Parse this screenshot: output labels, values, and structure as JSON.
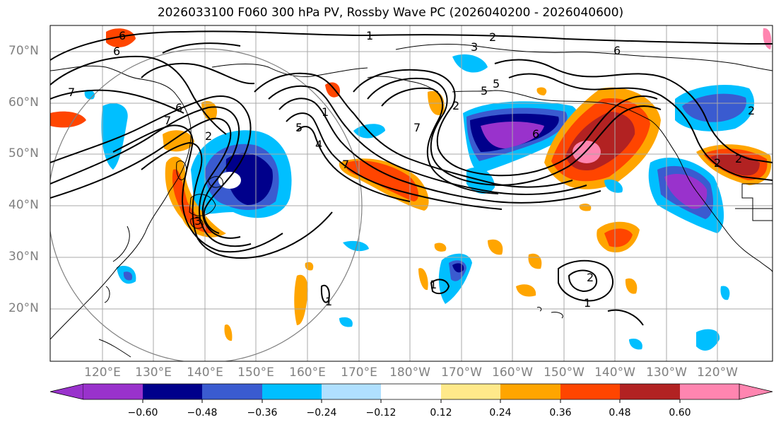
{
  "title": "2026033100 F060 300 hPa PV, Rossby Wave PC (2026040200 - 2026040600)",
  "map": {
    "lat_labels": [
      "70°N",
      "60°N",
      "50°N",
      "40°N",
      "30°N",
      "20°N"
    ],
    "lon_labels": [
      "120°E",
      "130°E",
      "140°E",
      "150°E",
      "160°E",
      "170°E",
      "180°W",
      "170°W",
      "160°W",
      "150°W",
      "140°W",
      "130°W",
      "120°W"
    ],
    "contour_labels": [
      "1",
      "2",
      "3",
      "5",
      "6",
      "7",
      "1",
      "2",
      "5",
      "6",
      "7",
      "6",
      "5",
      "4",
      "3",
      "1",
      "2",
      "7",
      "6",
      "2",
      "6",
      "7",
      "2",
      "1",
      "2",
      "1",
      "2"
    ]
  },
  "colorbar": {
    "tick_labels": [
      "−0.60",
      "−0.48",
      "−0.36",
      "−0.24",
      "−0.12",
      "0.12",
      "0.24",
      "0.36",
      "0.48",
      "0.60"
    ],
    "colors": [
      "#9932cc",
      "#00008b",
      "#3a5bd0",
      "#00bfff",
      "#b0e0ff",
      "#ffffff",
      "#ffe98a",
      "#ffa500",
      "#ff4500",
      "#b22222",
      "#ff85b0",
      "#ff85b0"
    ]
  }
}
